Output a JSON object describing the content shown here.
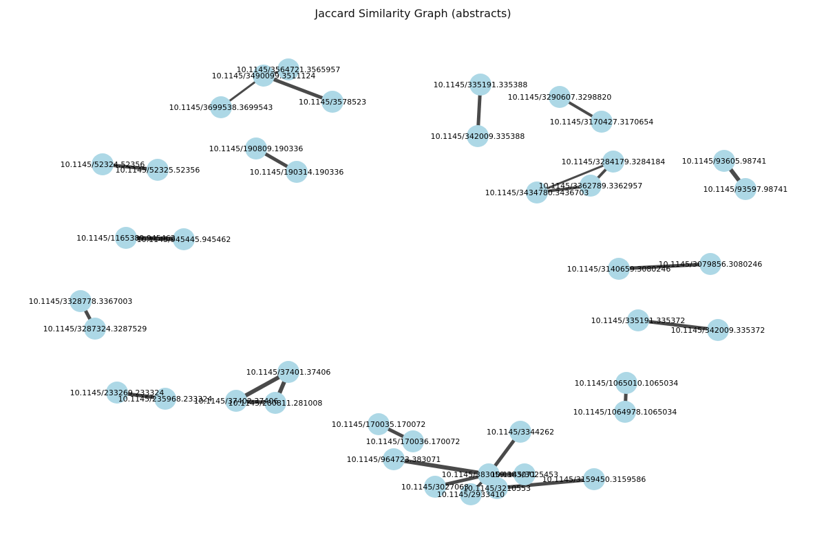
{
  "title": "Jaccard Similarity Graph (abstracts)",
  "colors": {
    "node": "#add8e6",
    "edge": "#4a4a4a",
    "label": "#000000"
  },
  "nodes": [
    {
      "id": "n1",
      "label": "10.1145/3564721.3565957"
    },
    {
      "id": "n2",
      "label": "10.1145/3490099.3511124"
    },
    {
      "id": "n3",
      "label": "10.1145/3699538.3699543"
    },
    {
      "id": "n4",
      "label": "10.1145/3578523"
    },
    {
      "id": "n5",
      "label": "10.1145/335191.335388"
    },
    {
      "id": "n6",
      "label": "10.1145/342009.335388"
    },
    {
      "id": "n7",
      "label": "10.1145/3290607.3298820"
    },
    {
      "id": "n8",
      "label": "10.1145/3170427.3170654"
    },
    {
      "id": "n9",
      "label": "10.1145/52324.52356"
    },
    {
      "id": "n10",
      "label": "10.1145/52325.52356"
    },
    {
      "id": "n11",
      "label": "10.1145/190809.190336"
    },
    {
      "id": "n12",
      "label": "10.1145/190314.190336"
    },
    {
      "id": "n13",
      "label": "10.1145/3284179.3284184"
    },
    {
      "id": "n14",
      "label": "10.1145/3362789.3362957"
    },
    {
      "id": "n15",
      "label": "10.1145/3434780.3436703"
    },
    {
      "id": "n16",
      "label": "10.1145/93605.98741"
    },
    {
      "id": "n17",
      "label": "10.1145/93597.98741"
    },
    {
      "id": "n18",
      "label": "10.1145/1165389.945462"
    },
    {
      "id": "n19",
      "label": "10.1145/945445.945462"
    },
    {
      "id": "n20",
      "label": "10.1145/3140659.3080246"
    },
    {
      "id": "n21",
      "label": "10.1145/3079856.3080246"
    },
    {
      "id": "n22",
      "label": "10.1145/3328778.3367003"
    },
    {
      "id": "n23",
      "label": "10.1145/3287324.3287529"
    },
    {
      "id": "n24",
      "label": "10.1145/335191.335372"
    },
    {
      "id": "n25",
      "label": "10.1145/342009.335372"
    },
    {
      "id": "n26",
      "label": "10.1145/37401.37406"
    },
    {
      "id": "n27",
      "label": "10.1145/37402.37406"
    },
    {
      "id": "n28",
      "label": "10.1145/280811.281008"
    },
    {
      "id": "n29",
      "label": "10.1145/233269.233324"
    },
    {
      "id": "n30",
      "label": "10.1145/235968.233324"
    },
    {
      "id": "n31",
      "label": "10.1145/1065010.1065034"
    },
    {
      "id": "n32",
      "label": "10.1145/1064978.1065034"
    },
    {
      "id": "n33",
      "label": "10.1145/170035.170072"
    },
    {
      "id": "n34",
      "label": "10.1145/170036.170072"
    },
    {
      "id": "n35",
      "label": "10.1145/3344262"
    },
    {
      "id": "n36",
      "label": "10.1145/964723.383071"
    },
    {
      "id": "n37",
      "label": "10.1145/383059.383071"
    },
    {
      "id": "n38",
      "label": "10.1145/3025453"
    },
    {
      "id": "n39",
      "label": "10.1145/3027063"
    },
    {
      "id": "n40",
      "label": "10.1145/3210553"
    },
    {
      "id": "n41",
      "label": "10.1145/2933410"
    },
    {
      "id": "n42",
      "label": "10.1145/3159450.3159586"
    }
  ],
  "edges": [
    {
      "source": "n1",
      "target": "n2",
      "weight": 3
    },
    {
      "source": "n2",
      "target": "n3",
      "weight": 3
    },
    {
      "source": "n2",
      "target": "n4",
      "weight": 5
    },
    {
      "source": "n5",
      "target": "n6",
      "weight": 5
    },
    {
      "source": "n7",
      "target": "n8",
      "weight": 4
    },
    {
      "source": "n9",
      "target": "n10",
      "weight": 5
    },
    {
      "source": "n11",
      "target": "n12",
      "weight": 5
    },
    {
      "source": "n13",
      "target": "n15",
      "weight": 3
    },
    {
      "source": "n13",
      "target": "n14",
      "weight": 4
    },
    {
      "source": "n14",
      "target": "n15",
      "weight": 4
    },
    {
      "source": "n16",
      "target": "n17",
      "weight": 6
    },
    {
      "source": "n18",
      "target": "n19",
      "weight": 6
    },
    {
      "source": "n20",
      "target": "n21",
      "weight": 5
    },
    {
      "source": "n22",
      "target": "n23",
      "weight": 5
    },
    {
      "source": "n24",
      "target": "n25",
      "weight": 5
    },
    {
      "source": "n26",
      "target": "n27",
      "weight": 6
    },
    {
      "source": "n26",
      "target": "n28",
      "weight": 6
    },
    {
      "source": "n27",
      "target": "n28",
      "weight": 5
    },
    {
      "source": "n29",
      "target": "n30",
      "weight": 5
    },
    {
      "source": "n31",
      "target": "n32",
      "weight": 5
    },
    {
      "source": "n33",
      "target": "n34",
      "weight": 5
    },
    {
      "source": "n35",
      "target": "n37",
      "weight": 5
    },
    {
      "source": "n36",
      "target": "n37",
      "weight": 6
    },
    {
      "source": "n37",
      "target": "n38",
      "weight": 5
    },
    {
      "source": "n37",
      "target": "n39",
      "weight": 5
    },
    {
      "source": "n37",
      "target": "n40",
      "weight": 5
    },
    {
      "source": "n37",
      "target": "n41",
      "weight": 4
    },
    {
      "source": "n40",
      "target": "n42",
      "weight": 5
    }
  ]
}
